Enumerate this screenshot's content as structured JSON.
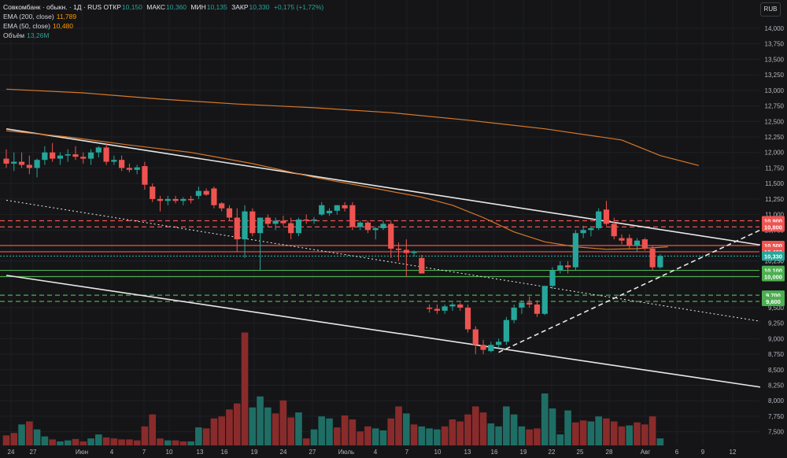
{
  "header": {
    "title": "Совкомбанк · обыкн. · 1Д · RUS",
    "open_label": "ОТКР",
    "open": "10,150",
    "high_label": "МАКС",
    "high": "10,360",
    "low_label": "МИН",
    "low": "10,135",
    "close_label": "ЗАКР",
    "close": "10,330",
    "change": "+0,175 (+1,72%)"
  },
  "indicators": [
    {
      "label": "EMA (200, close)",
      "value": "11,789",
      "color": "#ff9800"
    },
    {
      "label": "EMA (50, close)",
      "value": "10,480",
      "color": "#ff9800"
    },
    {
      "label": "Объём",
      "value": "13,26M",
      "color": "#26a69a"
    }
  ],
  "currency_button": "RUB",
  "colors": {
    "up": "#26a69a",
    "down": "#ef5350",
    "up_vol": "#1f6e65",
    "down_vol": "#8a2b2b",
    "ema": "#d8782a",
    "price_badge": "#26a69a"
  },
  "chart_data": {
    "type": "candlestick",
    "title": "Совкомбанк · обыкн. · 1Д · RUS",
    "ylim": [
      7.28,
      14.38
    ],
    "y_ticks": [
      "14,000",
      "13,750",
      "13,500",
      "13,250",
      "13,000",
      "12,750",
      "12,500",
      "12,250",
      "12,000",
      "11,750",
      "11,500",
      "11,250",
      "11,000",
      "10,750",
      "10,250",
      "10,000",
      "9,500",
      "9,250",
      "9,000",
      "8,750",
      "8,500",
      "8,250",
      "8,000",
      "7,750",
      "7,500"
    ],
    "x_ticks": [
      "24",
      "27",
      "Июн",
      "4",
      "7",
      "10",
      "13",
      "16",
      "19",
      "24",
      "27",
      "Июль",
      "4",
      "7",
      "10",
      "13",
      "16",
      "19",
      "22",
      "25",
      "28",
      "Авг",
      "6",
      "9",
      "12"
    ],
    "candles": [
      {
        "o": 11.9,
        "h": 12.05,
        "l": 11.75,
        "c": 11.82
      },
      {
        "o": 11.82,
        "h": 12.0,
        "l": 11.7,
        "c": 11.85
      },
      {
        "o": 11.85,
        "h": 12.0,
        "l": 11.75,
        "c": 11.8
      },
      {
        "o": 11.8,
        "h": 11.95,
        "l": 11.65,
        "c": 11.75
      },
      {
        "o": 11.75,
        "h": 11.9,
        "l": 11.6,
        "c": 11.88
      },
      {
        "o": 11.88,
        "h": 12.1,
        "l": 11.8,
        "c": 12.0
      },
      {
        "o": 12.0,
        "h": 12.15,
        "l": 11.85,
        "c": 11.9
      },
      {
        "o": 11.9,
        "h": 12.0,
        "l": 11.8,
        "c": 11.95
      },
      {
        "o": 11.95,
        "h": 12.05,
        "l": 11.85,
        "c": 11.97
      },
      {
        "o": 11.97,
        "h": 12.1,
        "l": 11.88,
        "c": 11.93
      },
      {
        "o": 11.93,
        "h": 12.0,
        "l": 11.82,
        "c": 11.9
      },
      {
        "o": 11.9,
        "h": 12.05,
        "l": 11.8,
        "c": 12.0
      },
      {
        "o": 12.0,
        "h": 12.1,
        "l": 11.92,
        "c": 12.08
      },
      {
        "o": 12.08,
        "h": 12.15,
        "l": 11.8,
        "c": 11.85
      },
      {
        "o": 11.85,
        "h": 11.95,
        "l": 11.8,
        "c": 11.88
      },
      {
        "o": 11.88,
        "h": 11.95,
        "l": 11.7,
        "c": 11.75
      },
      {
        "o": 11.75,
        "h": 11.82,
        "l": 11.68,
        "c": 11.72
      },
      {
        "o": 11.72,
        "h": 11.8,
        "l": 11.65,
        "c": 11.76
      },
      {
        "o": 11.78,
        "h": 11.85,
        "l": 11.4,
        "c": 11.48
      },
      {
        "o": 11.45,
        "h": 11.5,
        "l": 11.2,
        "c": 11.25
      },
      {
        "o": 11.25,
        "h": 11.3,
        "l": 11.05,
        "c": 11.22
      },
      {
        "o": 11.22,
        "h": 11.3,
        "l": 11.15,
        "c": 11.25
      },
      {
        "o": 11.25,
        "h": 11.3,
        "l": 11.18,
        "c": 11.22
      },
      {
        "o": 11.22,
        "h": 11.28,
        "l": 11.15,
        "c": 11.25
      },
      {
        "o": 11.25,
        "h": 11.3,
        "l": 11.18,
        "c": 11.23
      },
      {
        "o": 11.3,
        "h": 11.45,
        "l": 11.25,
        "c": 11.38
      },
      {
        "o": 11.38,
        "h": 11.42,
        "l": 11.3,
        "c": 11.32
      },
      {
        "o": 11.42,
        "h": 11.45,
        "l": 11.1,
        "c": 11.15
      },
      {
        "o": 11.18,
        "h": 11.2,
        "l": 11.05,
        "c": 11.1
      },
      {
        "o": 11.1,
        "h": 11.15,
        "l": 10.9,
        "c": 10.95
      },
      {
        "o": 10.95,
        "h": 11.1,
        "l": 10.4,
        "c": 10.6
      },
      {
        "o": 10.6,
        "h": 11.15,
        "l": 10.3,
        "c": 11.05
      },
      {
        "o": 11.05,
        "h": 11.1,
        "l": 10.65,
        "c": 10.7
      },
      {
        "o": 10.7,
        "h": 10.95,
        "l": 10.1,
        "c": 10.95
      },
      {
        "o": 10.95,
        "h": 11.0,
        "l": 10.8,
        "c": 10.85
      },
      {
        "o": 10.85,
        "h": 10.95,
        "l": 10.75,
        "c": 10.9
      },
      {
        "o": 10.9,
        "h": 10.98,
        "l": 10.82,
        "c": 10.86
      },
      {
        "o": 10.86,
        "h": 10.95,
        "l": 10.6,
        "c": 10.7
      },
      {
        "o": 10.7,
        "h": 10.95,
        "l": 10.65,
        "c": 10.92
      },
      {
        "o": 10.92,
        "h": 11.0,
        "l": 10.85,
        "c": 10.9
      },
      {
        "o": 10.9,
        "h": 10.96,
        "l": 10.85,
        "c": 10.92
      },
      {
        "o": 11.0,
        "h": 11.2,
        "l": 10.98,
        "c": 11.15
      },
      {
        "o": 11.02,
        "h": 11.1,
        "l": 10.98,
        "c": 11.06
      },
      {
        "o": 11.06,
        "h": 11.15,
        "l": 11.0,
        "c": 11.15
      },
      {
        "o": 11.15,
        "h": 11.2,
        "l": 11.05,
        "c": 11.1
      },
      {
        "o": 11.15,
        "h": 11.2,
        "l": 10.75,
        "c": 10.8
      },
      {
        "o": 10.8,
        "h": 10.9,
        "l": 10.75,
        "c": 10.87
      },
      {
        "o": 10.87,
        "h": 10.9,
        "l": 10.7,
        "c": 10.75
      },
      {
        "o": 10.75,
        "h": 10.8,
        "l": 10.6,
        "c": 10.78
      },
      {
        "o": 10.78,
        "h": 10.9,
        "l": 10.75,
        "c": 10.85
      },
      {
        "o": 10.85,
        "h": 10.9,
        "l": 10.3,
        "c": 10.45
      },
      {
        "o": 10.45,
        "h": 10.55,
        "l": 10.25,
        "c": 10.43
      },
      {
        "o": 10.43,
        "h": 10.6,
        "l": 10.0,
        "c": 10.38
      },
      {
        "o": 10.38,
        "h": 10.42,
        "l": 10.32,
        "c": 10.4
      },
      {
        "o": 10.3,
        "h": 10.35,
        "l": 10.1,
        "c": 10.05
      },
      {
        "o": 9.5,
        "h": 9.55,
        "l": 9.42,
        "c": 9.48
      },
      {
        "o": 9.48,
        "h": 9.55,
        "l": 9.4,
        "c": 9.45
      },
      {
        "o": 9.45,
        "h": 9.55,
        "l": 9.4,
        "c": 9.52
      },
      {
        "o": 9.52,
        "h": 9.58,
        "l": 9.45,
        "c": 9.55
      },
      {
        "o": 9.55,
        "h": 9.58,
        "l": 9.45,
        "c": 9.5
      },
      {
        "o": 9.5,
        "h": 9.55,
        "l": 9.1,
        "c": 9.15
      },
      {
        "o": 9.15,
        "h": 9.2,
        "l": 8.75,
        "c": 8.9
      },
      {
        "o": 8.9,
        "h": 8.98,
        "l": 8.75,
        "c": 8.82
      },
      {
        "o": 8.8,
        "h": 8.95,
        "l": 8.78,
        "c": 8.9
      },
      {
        "o": 8.9,
        "h": 9.0,
        "l": 8.85,
        "c": 8.95
      },
      {
        "o": 8.95,
        "h": 9.35,
        "l": 8.9,
        "c": 9.3
      },
      {
        "o": 9.3,
        "h": 9.55,
        "l": 9.25,
        "c": 9.5
      },
      {
        "o": 9.5,
        "h": 9.62,
        "l": 9.4,
        "c": 9.58
      },
      {
        "o": 9.58,
        "h": 9.68,
        "l": 9.5,
        "c": 9.55
      },
      {
        "o": 9.55,
        "h": 9.62,
        "l": 9.35,
        "c": 9.4
      },
      {
        "o": 9.4,
        "h": 9.85,
        "l": 9.38,
        "c": 9.85
      },
      {
        "o": 9.85,
        "h": 10.15,
        "l": 9.8,
        "c": 10.1
      },
      {
        "o": 10.1,
        "h": 10.25,
        "l": 10.05,
        "c": 10.18
      },
      {
        "o": 10.18,
        "h": 10.25,
        "l": 10.05,
        "c": 10.15
      },
      {
        "o": 10.15,
        "h": 10.75,
        "l": 10.1,
        "c": 10.7
      },
      {
        "o": 10.7,
        "h": 10.82,
        "l": 10.62,
        "c": 10.75
      },
      {
        "o": 10.75,
        "h": 10.8,
        "l": 10.65,
        "c": 10.78
      },
      {
        "o": 10.78,
        "h": 11.1,
        "l": 10.75,
        "c": 11.05
      },
      {
        "o": 11.08,
        "h": 11.22,
        "l": 10.82,
        "c": 10.85
      },
      {
        "o": 10.85,
        "h": 10.95,
        "l": 10.6,
        "c": 10.65
      },
      {
        "o": 10.62,
        "h": 10.68,
        "l": 10.52,
        "c": 10.58
      },
      {
        "o": 10.62,
        "h": 10.68,
        "l": 10.45,
        "c": 10.5
      },
      {
        "o": 10.5,
        "h": 10.62,
        "l": 10.4,
        "c": 10.58
      },
      {
        "o": 10.6,
        "h": 10.62,
        "l": 10.42,
        "c": 10.45
      },
      {
        "o": 10.45,
        "h": 10.5,
        "l": 10.1,
        "c": 10.15
      },
      {
        "o": 10.15,
        "h": 10.36,
        "l": 10.13,
        "c": 10.33
      }
    ],
    "volume": [
      {
        "v": 0.5,
        "up": false
      },
      {
        "v": 0.62,
        "up": false
      },
      {
        "v": 1.05,
        "up": true
      },
      {
        "v": 1.2,
        "up": false
      },
      {
        "v": 0.8,
        "up": true
      },
      {
        "v": 0.45,
        "up": true
      },
      {
        "v": 0.3,
        "up": false
      },
      {
        "v": 0.2,
        "up": true
      },
      {
        "v": 0.25,
        "up": true
      },
      {
        "v": 0.32,
        "up": false
      },
      {
        "v": 0.2,
        "up": false
      },
      {
        "v": 0.35,
        "up": true
      },
      {
        "v": 0.55,
        "up": true
      },
      {
        "v": 0.4,
        "up": false
      },
      {
        "v": 0.35,
        "up": false
      },
      {
        "v": 0.3,
        "up": false
      },
      {
        "v": 0.3,
        "up": false
      },
      {
        "v": 0.25,
        "up": false
      },
      {
        "v": 0.95,
        "up": false
      },
      {
        "v": 1.55,
        "up": false
      },
      {
        "v": 0.35,
        "up": false
      },
      {
        "v": 0.25,
        "up": true
      },
      {
        "v": 0.25,
        "up": false
      },
      {
        "v": 0.2,
        "up": false
      },
      {
        "v": 0.2,
        "up": true
      },
      {
        "v": 0.9,
        "up": true
      },
      {
        "v": 0.85,
        "up": false
      },
      {
        "v": 1.35,
        "up": false
      },
      {
        "v": 1.45,
        "up": false
      },
      {
        "v": 1.8,
        "up": false
      },
      {
        "v": 2.1,
        "up": false
      },
      {
        "v": 5.65,
        "up": false
      },
      {
        "v": 1.9,
        "up": true
      },
      {
        "v": 2.45,
        "up": true
      },
      {
        "v": 1.9,
        "up": true
      },
      {
        "v": 1.6,
        "up": false
      },
      {
        "v": 2.25,
        "up": false
      },
      {
        "v": 1.4,
        "up": false
      },
      {
        "v": 1.65,
        "up": true
      },
      {
        "v": 0.35,
        "up": false
      },
      {
        "v": 0.8,
        "up": true
      },
      {
        "v": 1.45,
        "up": true
      },
      {
        "v": 1.35,
        "up": true
      },
      {
        "v": 0.9,
        "up": false
      },
      {
        "v": 1.5,
        "up": false
      },
      {
        "v": 1.3,
        "up": false
      },
      {
        "v": 0.7,
        "up": false
      },
      {
        "v": 0.95,
        "up": false
      },
      {
        "v": 0.85,
        "up": true
      },
      {
        "v": 0.75,
        "up": true
      },
      {
        "v": 1.35,
        "up": false
      },
      {
        "v": 1.95,
        "up": false
      },
      {
        "v": 1.6,
        "up": true
      },
      {
        "v": 1.05,
        "up": false
      },
      {
        "v": 0.95,
        "up": true
      },
      {
        "v": 0.85,
        "up": true
      },
      {
        "v": 0.8,
        "up": true
      },
      {
        "v": 0.95,
        "up": false
      },
      {
        "v": 1.3,
        "up": false
      },
      {
        "v": 1.2,
        "up": false
      },
      {
        "v": 1.55,
        "up": false
      },
      {
        "v": 1.95,
        "up": false
      },
      {
        "v": 1.65,
        "up": false
      },
      {
        "v": 1.1,
        "up": true
      },
      {
        "v": 0.95,
        "up": true
      },
      {
        "v": 1.95,
        "up": true
      },
      {
        "v": 1.55,
        "up": true
      },
      {
        "v": 0.95,
        "up": true
      },
      {
        "v": 0.8,
        "up": false
      },
      {
        "v": 0.85,
        "up": false
      },
      {
        "v": 2.6,
        "up": true
      },
      {
        "v": 1.85,
        "up": true
      },
      {
        "v": 0.55,
        "up": true
      },
      {
        "v": 1.75,
        "up": true
      },
      {
        "v": 1.15,
        "up": false
      },
      {
        "v": 1.25,
        "up": false
      },
      {
        "v": 1.2,
        "up": true
      },
      {
        "v": 1.45,
        "up": true
      },
      {
        "v": 1.35,
        "up": false
      },
      {
        "v": 1.2,
        "up": false
      },
      {
        "v": 0.95,
        "up": false
      },
      {
        "v": 1.0,
        "up": true
      },
      {
        "v": 1.15,
        "up": false
      },
      {
        "v": 1.05,
        "up": false
      },
      {
        "v": 1.45,
        "up": false
      },
      {
        "v": 0.35,
        "up": true
      }
    ],
    "ema200": [
      [
        0,
        13.02
      ],
      [
        10,
        12.96
      ],
      [
        20,
        12.86
      ],
      [
        30,
        12.78
      ],
      [
        40,
        12.72
      ],
      [
        50,
        12.64
      ],
      [
        60,
        12.52
      ],
      [
        70,
        12.38
      ],
      [
        80,
        12.2
      ],
      [
        85,
        11.95
      ],
      [
        90,
        11.79
      ]
    ],
    "ema50": [
      [
        0,
        12.35
      ],
      [
        8,
        12.25
      ],
      [
        16,
        12.12
      ],
      [
        24,
        12.0
      ],
      [
        32,
        11.82
      ],
      [
        40,
        11.6
      ],
      [
        48,
        11.42
      ],
      [
        54,
        11.28
      ],
      [
        58,
        11.15
      ],
      [
        62,
        10.95
      ],
      [
        66,
        10.72
      ],
      [
        70,
        10.56
      ],
      [
        74,
        10.48
      ],
      [
        78,
        10.44
      ],
      [
        82,
        10.45
      ],
      [
        86,
        10.48
      ]
    ],
    "trend_lines": [
      {
        "style": "solid",
        "from": [
          0,
          12.38
        ],
        "to": [
          98,
          10.51
        ]
      },
      {
        "style": "solid",
        "from": [
          0,
          10.02
        ],
        "to": [
          98,
          8.22
        ]
      },
      {
        "style": "dotted",
        "from": [
          0,
          11.23
        ],
        "to": [
          98,
          9.28
        ]
      },
      {
        "style": "dashed",
        "from": [
          64,
          8.78
        ],
        "to": [
          98,
          10.75
        ]
      }
    ],
    "levels": [
      {
        "value": 10.9,
        "label": "10,900",
        "style": "dashed",
        "color": "#ef5350"
      },
      {
        "value": 10.8,
        "label": "10,800",
        "style": "dashed",
        "color": "#ef5350"
      },
      {
        "value": 10.5,
        "label": "10,500",
        "style": "solid",
        "color": "#ef5350"
      },
      {
        "value": 10.4,
        "label": "10,400",
        "style": "solid",
        "color": "#ef5350"
      },
      {
        "value": 10.33,
        "label": "10,330",
        "style": "dotted",
        "color": "#26a69a"
      },
      {
        "value": 10.1,
        "label": "10,100",
        "style": "solid",
        "color": "#4caf50"
      },
      {
        "value": 10.0,
        "label": "10,000",
        "style": "solid",
        "color": "#4caf50"
      },
      {
        "value": 9.7,
        "label": "9,700",
        "style": "dashed",
        "color": "#4caf50"
      },
      {
        "value": 9.6,
        "label": "9,600",
        "style": "dashed",
        "color": "#4caf50"
      }
    ],
    "last_price_label": "10,330",
    "hidden_tick_label": "10,250"
  }
}
